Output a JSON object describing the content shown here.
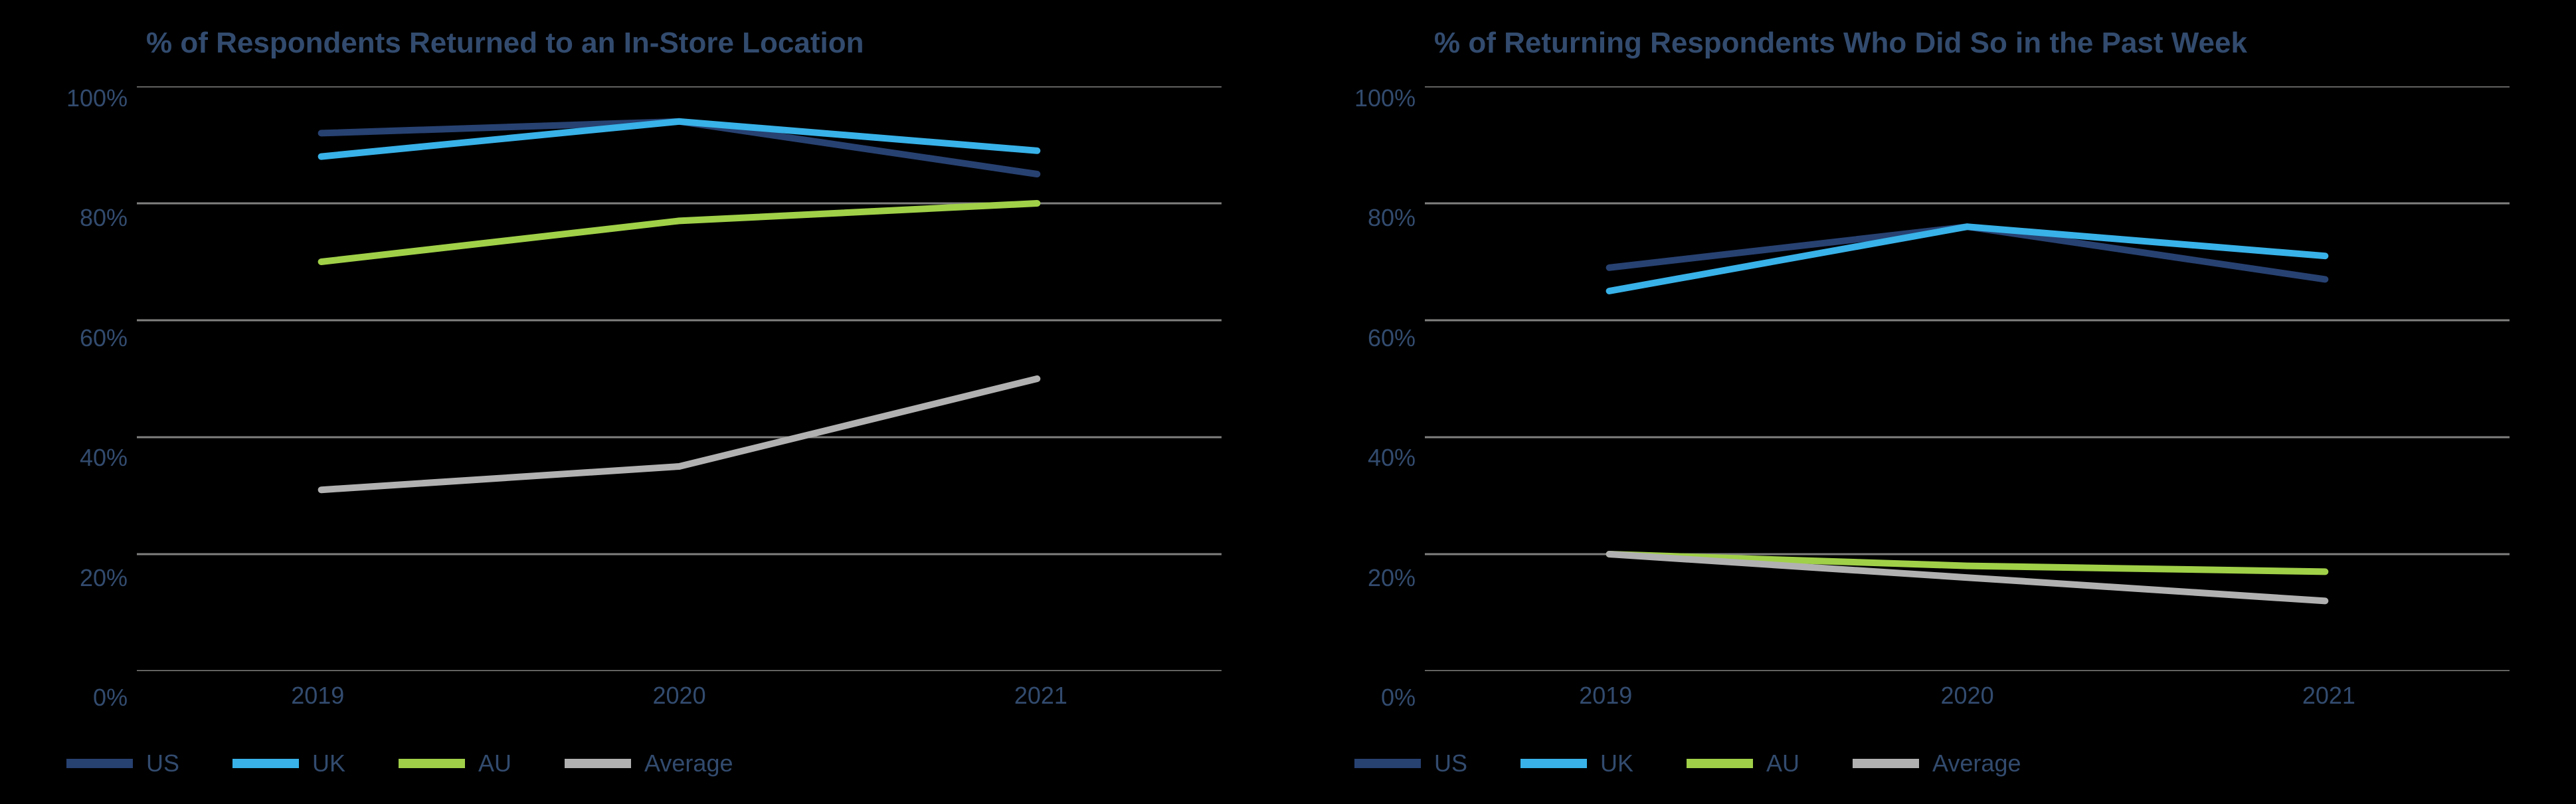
{
  "colors": {
    "axis_text": "#324b6e",
    "gridline": "#80807f",
    "bg": "#000000"
  },
  "legend_swatch_width": 100,
  "charts": [
    {
      "title": "% of Respondents Returned to an In-Store Location",
      "type": "line",
      "categories": [
        "2019",
        "2020",
        "2021"
      ],
      "y_ticks": [
        "100%",
        "80%",
        "60%",
        "40%",
        "20%",
        "0%"
      ],
      "ylim": [
        0,
        100
      ],
      "series": [
        {
          "name": "US",
          "color": "#274171",
          "values": [
            92,
            94,
            85
          ]
        },
        {
          "name": "UK",
          "color": "#38b2e8",
          "values": [
            88,
            94,
            89
          ]
        },
        {
          "name": "AU",
          "color": "#a0d048",
          "values": [
            70,
            77,
            80
          ]
        },
        {
          "name": "Average",
          "color": "#b1b1b1",
          "values": [
            31,
            35,
            50
          ]
        }
      ],
      "title_fontsize": 44,
      "axis_fontsize": 36,
      "line_width": 10,
      "x_category_padding": 0.17
    },
    {
      "title": "% of Returning Respondents Who Did So in the Past Week",
      "type": "line",
      "categories": [
        "2019",
        "2020",
        "2021"
      ],
      "y_ticks": [
        "100%",
        "80%",
        "60%",
        "40%",
        "20%",
        "0%"
      ],
      "ylim": [
        0,
        100
      ],
      "series": [
        {
          "name": "US",
          "color": "#274171",
          "values": [
            69,
            76,
            67
          ]
        },
        {
          "name": "UK",
          "color": "#38b2e8",
          "values": [
            65,
            76,
            71
          ]
        },
        {
          "name": "AU",
          "color": "#a0d048",
          "values": [
            20,
            18,
            17
          ]
        },
        {
          "name": "Average",
          "color": "#b1b1b1",
          "values": [
            20,
            16,
            12
          ]
        }
      ],
      "title_fontsize": 44,
      "axis_fontsize": 36,
      "line_width": 10,
      "x_category_padding": 0.17
    }
  ]
}
